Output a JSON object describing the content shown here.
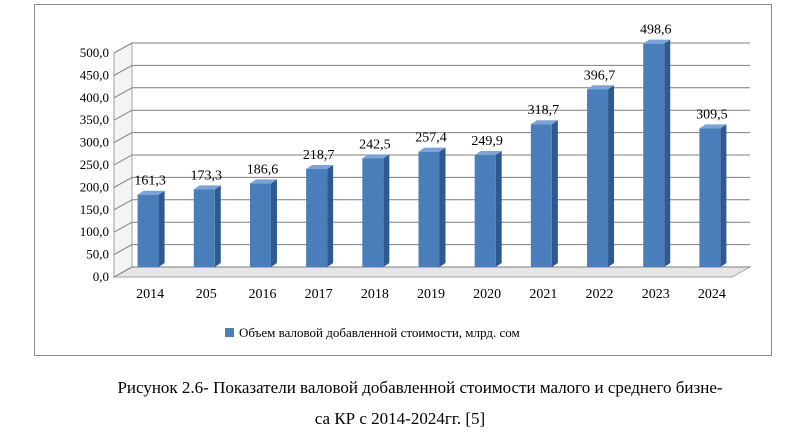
{
  "chart_data": {
    "type": "bar",
    "categories": [
      "2014",
      "205",
      "2016",
      "2017",
      "2018",
      "2019",
      "2020",
      "2021",
      "2022",
      "2023",
      "2024"
    ],
    "series": [
      {
        "name": "Объем валовой добавленной стоимости, млрд. сом",
        "values": [
          161.3,
          173.3,
          186.6,
          218.7,
          242.5,
          257.4,
          249.9,
          318.7,
          396.7,
          498.6,
          309.5
        ],
        "labels": [
          "161,3",
          "173,3",
          "186,6",
          "218,7",
          "242,5",
          "257,4",
          "249,9",
          "318,7",
          "396,7",
          "498,6",
          "309,5"
        ]
      }
    ],
    "yticks": [
      "0,0",
      "50,0",
      "100,0",
      "150,0",
      "200,0",
      "250,0",
      "300,0",
      "350,0",
      "400,0",
      "450,0",
      "500,0"
    ],
    "ylim": [
      0,
      500
    ],
    "grid": true,
    "legend": "bottom",
    "bar_color": "#4a7ebb",
    "bar_side_color": "#2e5a91",
    "bar_top_color": "#7ba3d6"
  },
  "caption": {
    "line1": "Рисунок 2.6- Показатели валовой добавленной стоимости малого и среднего бизне-",
    "line2": "са КР с 2014-2024гг. [5]"
  }
}
